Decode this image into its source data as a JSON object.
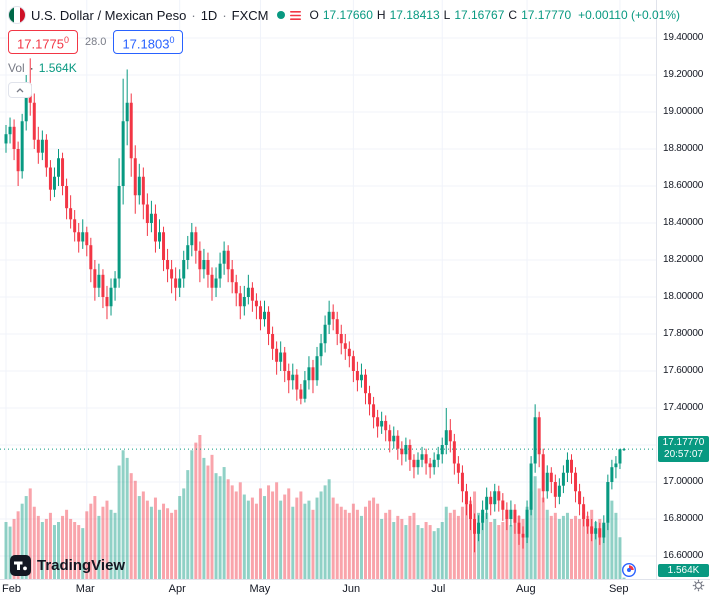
{
  "legend": {
    "title": "U.S. Dollar / Mexican Peso",
    "separator": "·",
    "timeframe": "1D",
    "exchange": "FXCM",
    "ohlc": {
      "o_label": "O",
      "o": "17.17660",
      "h_label": "H",
      "h": "17.18413",
      "l_label": "L",
      "l": "17.16767",
      "c_label": "C",
      "c": "17.17770"
    },
    "change": "+0.00110 (+0.01%)",
    "sell": {
      "main": "17.1775",
      "sup": "0"
    },
    "spread": "28.0",
    "buy": {
      "main": "17.1803",
      "sup": "0"
    },
    "vol_label": "Vol",
    "vol_value": "1.564K"
  },
  "footer": {
    "logo_text": "TradingView"
  },
  "chart_data": {
    "type": "candlestick",
    "title": "U.S. Dollar / Mexican Peso",
    "symbol": "USDMXN",
    "timeframe": "1D",
    "exchange": "FXCM",
    "last_price": 17.1777,
    "last_price_label": "17.17770",
    "countdown": "20:57:07",
    "volume_badge": "1.564K",
    "colors": {
      "up": "#089981",
      "down": "#f23645",
      "vol_up": "rgba(8,153,129,0.45)",
      "vol_down": "rgba(242,54,69,0.45)",
      "grid": "#f0f3fa",
      "accent_blue": "#2962ff"
    },
    "y_axis": {
      "ticks": [
        19.4,
        19.2,
        19.0,
        18.8,
        18.6,
        18.4,
        18.2,
        18.0,
        17.8,
        17.6,
        17.4,
        17.2,
        17.0,
        16.8,
        16.6
      ],
      "decimals": 5
    },
    "x_axis": {
      "months": [
        {
          "label": "Feb",
          "index": 0
        },
        {
          "label": "Mar",
          "index": 20
        },
        {
          "label": "Apr",
          "index": 43
        },
        {
          "label": "May",
          "index": 63
        },
        {
          "label": "Jun",
          "index": 86
        },
        {
          "label": "Jul",
          "index": 108
        },
        {
          "label": "Aug",
          "index": 129
        },
        {
          "label": "Sep",
          "index": 152
        }
      ]
    },
    "candles": [
      [
        18.83,
        18.93,
        18.78,
        18.88,
        38
      ],
      [
        18.88,
        18.97,
        18.83,
        18.92,
        35
      ],
      [
        18.92,
        18.96,
        18.74,
        18.8,
        40
      ],
      [
        18.8,
        18.84,
        18.6,
        18.68,
        45
      ],
      [
        18.68,
        18.99,
        18.64,
        18.95,
        50
      ],
      [
        18.95,
        19.2,
        18.9,
        19.15,
        55
      ],
      [
        19.15,
        19.29,
        18.98,
        19.05,
        60
      ],
      [
        19.05,
        19.1,
        18.8,
        18.85,
        48
      ],
      [
        18.85,
        18.92,
        18.72,
        18.78,
        42
      ],
      [
        18.78,
        18.9,
        18.74,
        18.85,
        38
      ],
      [
        18.85,
        18.88,
        18.65,
        18.7,
        40
      ],
      [
        18.7,
        18.74,
        18.52,
        18.58,
        44
      ],
      [
        18.58,
        18.7,
        18.54,
        18.65,
        36
      ],
      [
        18.65,
        18.8,
        18.6,
        18.75,
        38
      ],
      [
        18.75,
        18.78,
        18.55,
        18.6,
        42
      ],
      [
        18.6,
        18.64,
        18.42,
        18.48,
        46
      ],
      [
        18.48,
        18.55,
        18.37,
        18.42,
        40
      ],
      [
        18.42,
        18.47,
        18.3,
        18.35,
        38
      ],
      [
        18.35,
        18.4,
        18.24,
        18.3,
        36
      ],
      [
        18.3,
        18.42,
        18.26,
        18.35,
        34
      ],
      [
        18.35,
        18.38,
        18.22,
        18.28,
        45
      ],
      [
        18.28,
        18.32,
        18.08,
        18.15,
        50
      ],
      [
        18.15,
        18.2,
        17.98,
        18.05,
        55
      ],
      [
        18.05,
        18.18,
        18.0,
        18.12,
        42
      ],
      [
        18.12,
        18.15,
        17.94,
        18.0,
        48
      ],
      [
        18.0,
        18.06,
        17.88,
        17.95,
        52
      ],
      [
        17.95,
        18.1,
        17.9,
        18.05,
        46
      ],
      [
        18.05,
        18.14,
        17.98,
        18.1,
        44
      ],
      [
        18.1,
        18.75,
        18.05,
        18.6,
        75
      ],
      [
        18.6,
        19.18,
        18.5,
        18.95,
        85
      ],
      [
        18.95,
        19.23,
        18.82,
        19.05,
        80
      ],
      [
        19.05,
        19.1,
        18.65,
        18.75,
        70
      ],
      [
        18.75,
        18.82,
        18.45,
        18.55,
        65
      ],
      [
        18.55,
        18.72,
        18.5,
        18.65,
        55
      ],
      [
        18.65,
        18.7,
        18.42,
        18.5,
        58
      ],
      [
        18.5,
        18.56,
        18.33,
        18.4,
        52
      ],
      [
        18.4,
        18.52,
        18.35,
        18.45,
        48
      ],
      [
        18.45,
        18.5,
        18.24,
        18.3,
        54
      ],
      [
        18.3,
        18.42,
        18.26,
        18.35,
        46
      ],
      [
        18.35,
        18.38,
        18.14,
        18.2,
        50
      ],
      [
        18.2,
        18.26,
        18.08,
        18.15,
        47
      ],
      [
        18.15,
        18.2,
        18.02,
        18.1,
        44
      ],
      [
        18.1,
        18.16,
        17.98,
        18.05,
        46
      ],
      [
        18.05,
        18.15,
        18.0,
        18.1,
        55
      ],
      [
        18.1,
        18.25,
        18.05,
        18.2,
        60
      ],
      [
        18.2,
        18.33,
        18.15,
        18.28,
        72
      ],
      [
        18.28,
        18.4,
        18.22,
        18.35,
        85
      ],
      [
        18.35,
        18.38,
        18.18,
        18.25,
        90
      ],
      [
        18.25,
        18.3,
        18.08,
        18.15,
        95
      ],
      [
        18.15,
        18.26,
        18.1,
        18.2,
        80
      ],
      [
        18.2,
        18.24,
        18.05,
        18.12,
        75
      ],
      [
        18.12,
        18.16,
        17.98,
        18.05,
        82
      ],
      [
        18.05,
        18.16,
        18.0,
        18.1,
        70
      ],
      [
        18.1,
        18.24,
        18.05,
        18.18,
        68
      ],
      [
        18.18,
        18.3,
        18.12,
        18.25,
        74
      ],
      [
        18.25,
        18.28,
        18.08,
        18.15,
        66
      ],
      [
        18.15,
        18.2,
        18.02,
        18.08,
        62
      ],
      [
        18.08,
        18.12,
        17.95,
        18.02,
        58
      ],
      [
        18.02,
        18.06,
        17.88,
        17.95,
        64
      ],
      [
        17.95,
        18.06,
        17.9,
        18.0,
        56
      ],
      [
        18.0,
        18.12,
        17.96,
        18.05,
        52
      ],
      [
        18.05,
        18.08,
        17.92,
        17.98,
        54
      ],
      [
        17.98,
        18.02,
        17.88,
        17.95,
        50
      ],
      [
        17.95,
        17.98,
        17.82,
        17.88,
        60
      ],
      [
        17.88,
        17.98,
        17.84,
        17.92,
        55
      ],
      [
        17.92,
        17.95,
        17.74,
        17.8,
        62
      ],
      [
        17.8,
        17.84,
        17.66,
        17.72,
        58
      ],
      [
        17.72,
        17.76,
        17.58,
        17.65,
        64
      ],
      [
        17.65,
        17.76,
        17.6,
        17.7,
        52
      ],
      [
        17.7,
        17.73,
        17.54,
        17.6,
        56
      ],
      [
        17.6,
        17.64,
        17.48,
        17.55,
        60
      ],
      [
        17.55,
        17.64,
        17.5,
        17.58,
        48
      ],
      [
        17.58,
        17.61,
        17.44,
        17.5,
        54
      ],
      [
        17.5,
        17.53,
        17.42,
        17.45,
        58
      ],
      [
        17.45,
        17.6,
        17.43,
        17.55,
        50
      ],
      [
        17.55,
        17.68,
        17.5,
        17.62,
        52
      ],
      [
        17.62,
        17.66,
        17.48,
        17.55,
        46
      ],
      [
        17.55,
        17.73,
        17.52,
        17.68,
        54
      ],
      [
        17.68,
        17.8,
        17.63,
        17.75,
        58
      ],
      [
        17.75,
        17.9,
        17.7,
        17.85,
        62
      ],
      [
        17.85,
        17.98,
        17.8,
        17.92,
        66
      ],
      [
        17.92,
        17.96,
        17.82,
        17.88,
        54
      ],
      [
        17.88,
        17.92,
        17.74,
        17.8,
        50
      ],
      [
        17.8,
        17.85,
        17.69,
        17.75,
        48
      ],
      [
        17.75,
        17.8,
        17.66,
        17.72,
        46
      ],
      [
        17.72,
        17.76,
        17.62,
        17.68,
        44
      ],
      [
        17.68,
        17.71,
        17.54,
        17.6,
        50
      ],
      [
        17.6,
        17.65,
        17.49,
        17.55,
        46
      ],
      [
        17.55,
        17.64,
        17.51,
        17.58,
        42
      ],
      [
        17.58,
        17.61,
        17.42,
        17.48,
        48
      ],
      [
        17.48,
        17.52,
        17.36,
        17.42,
        52
      ],
      [
        17.42,
        17.46,
        17.29,
        17.35,
        54
      ],
      [
        17.35,
        17.39,
        17.24,
        17.3,
        50
      ],
      [
        17.3,
        17.38,
        17.26,
        17.33,
        40
      ],
      [
        17.33,
        17.36,
        17.22,
        17.28,
        44
      ],
      [
        17.28,
        17.31,
        17.16,
        17.22,
        46
      ],
      [
        17.22,
        17.3,
        17.18,
        17.25,
        38
      ],
      [
        17.25,
        17.28,
        17.12,
        17.18,
        42
      ],
      [
        17.18,
        17.22,
        17.09,
        17.15,
        40
      ],
      [
        17.15,
        17.24,
        17.11,
        17.2,
        36
      ],
      [
        17.2,
        17.23,
        17.06,
        17.12,
        42
      ],
      [
        17.12,
        17.15,
        17.02,
        17.08,
        44
      ],
      [
        17.08,
        17.16,
        17.04,
        17.12,
        36
      ],
      [
        17.12,
        17.19,
        17.08,
        17.15,
        34
      ],
      [
        17.15,
        17.18,
        17.04,
        17.1,
        38
      ],
      [
        17.1,
        17.13,
        17.02,
        17.08,
        36
      ],
      [
        17.08,
        17.16,
        17.04,
        17.12,
        32
      ],
      [
        17.12,
        17.19,
        17.08,
        17.15,
        34
      ],
      [
        17.15,
        17.24,
        17.1,
        17.2,
        38
      ],
      [
        17.2,
        17.4,
        17.15,
        17.28,
        48
      ],
      [
        17.28,
        17.34,
        17.16,
        17.22,
        44
      ],
      [
        17.22,
        17.26,
        17.04,
        17.1,
        46
      ],
      [
        17.1,
        17.14,
        16.99,
        17.05,
        42
      ],
      [
        17.05,
        17.09,
        16.89,
        16.95,
        48
      ],
      [
        16.95,
        16.99,
        16.82,
        16.88,
        50
      ],
      [
        16.88,
        16.92,
        16.74,
        16.8,
        52
      ],
      [
        16.8,
        16.83,
        16.62,
        16.72,
        58
      ],
      [
        16.72,
        16.82,
        16.68,
        16.78,
        44
      ],
      [
        16.78,
        16.9,
        16.74,
        16.85,
        42
      ],
      [
        16.85,
        16.97,
        16.8,
        16.92,
        44
      ],
      [
        16.92,
        16.95,
        16.82,
        16.88,
        38
      ],
      [
        16.88,
        16.99,
        16.84,
        16.95,
        40
      ],
      [
        16.95,
        16.98,
        16.84,
        16.9,
        36
      ],
      [
        16.9,
        16.94,
        16.79,
        16.85,
        38
      ],
      [
        16.85,
        16.89,
        16.74,
        16.8,
        40
      ],
      [
        16.8,
        16.9,
        16.76,
        16.85,
        36
      ],
      [
        16.85,
        16.88,
        16.72,
        16.78,
        38
      ],
      [
        16.78,
        16.82,
        16.66,
        16.72,
        42
      ],
      [
        16.72,
        16.76,
        16.64,
        16.7,
        40
      ],
      [
        16.7,
        16.9,
        16.67,
        16.85,
        48
      ],
      [
        16.85,
        17.14,
        16.82,
        17.1,
        58
      ],
      [
        17.1,
        17.42,
        17.05,
        17.35,
        68
      ],
      [
        17.35,
        17.38,
        17.08,
        17.15,
        60
      ],
      [
        17.15,
        17.18,
        16.89,
        16.95,
        54
      ],
      [
        16.95,
        17.09,
        16.91,
        17.05,
        46
      ],
      [
        17.05,
        17.08,
        16.94,
        17.0,
        42
      ],
      [
        17.0,
        17.04,
        16.86,
        16.92,
        44
      ],
      [
        16.92,
        17.02,
        16.88,
        16.98,
        40
      ],
      [
        16.98,
        17.09,
        16.94,
        17.05,
        42
      ],
      [
        17.05,
        17.16,
        17.0,
        17.12,
        44
      ],
      [
        17.12,
        17.15,
        16.99,
        17.05,
        40
      ],
      [
        17.05,
        17.08,
        16.89,
        16.95,
        42
      ],
      [
        16.95,
        16.99,
        16.82,
        16.88,
        40
      ],
      [
        16.88,
        16.92,
        16.76,
        16.8,
        44
      ],
      [
        16.8,
        16.84,
        16.72,
        16.76,
        42
      ],
      [
        16.76,
        16.8,
        16.68,
        16.72,
        46
      ],
      [
        16.72,
        16.79,
        16.69,
        16.75,
        38
      ],
      [
        16.75,
        16.78,
        16.66,
        16.7,
        40
      ],
      [
        16.7,
        16.82,
        16.67,
        16.78,
        36
      ],
      [
        16.78,
        17.04,
        16.74,
        17.0,
        64
      ],
      [
        17.0,
        17.12,
        16.96,
        17.08,
        52
      ],
      [
        17.08,
        17.14,
        17.02,
        17.1,
        44
      ],
      [
        17.1,
        17.18,
        17.07,
        17.1766,
        28
      ],
      [
        17.1766,
        17.18413,
        17.16767,
        17.1777,
        1.564
      ]
    ]
  }
}
